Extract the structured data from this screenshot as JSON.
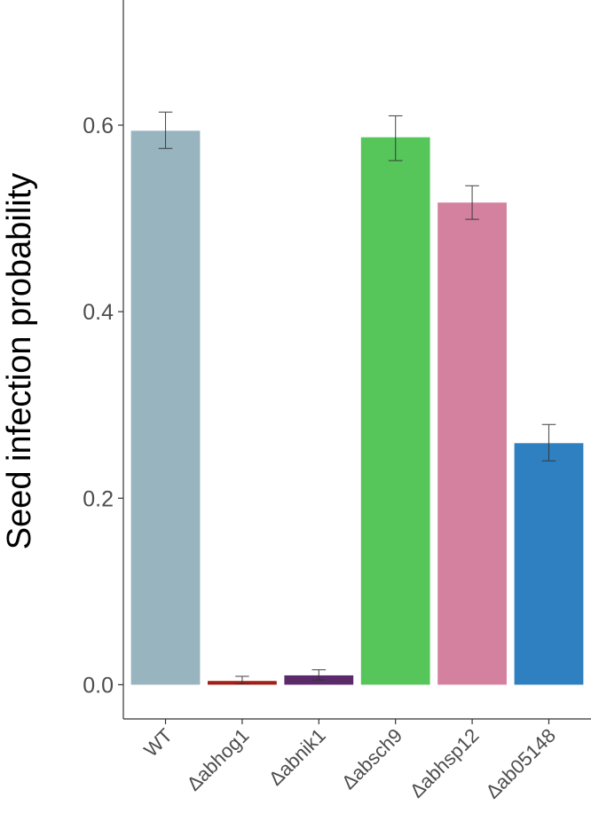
{
  "chart_data": {
    "type": "bar",
    "title": "",
    "xlabel": "",
    "ylabel": "Seed infection probability",
    "ylim": [
      -0.0367,
      0.7342
    ],
    "yticks": [
      0.0,
      0.2,
      0.4,
      0.6
    ],
    "ytick_labels": [
      "0.0",
      "0.2",
      "0.4",
      "0.6"
    ],
    "categories": [
      "WT",
      "Δabhog1",
      "Δabnik1",
      "Δabsch9",
      "Δabhsp12",
      "Δab05148"
    ],
    "values": [
      0.594,
      0.004,
      0.01,
      0.587,
      0.517,
      0.259
    ],
    "error_low": [
      0.575,
      0.001,
      0.005,
      0.562,
      0.499,
      0.24
    ],
    "error_high": [
      0.614,
      0.009,
      0.016,
      0.61,
      0.535,
      0.279
    ],
    "colors": [
      "#98b4bf",
      "#a31f16",
      "#5b2a6b",
      "#56c55a",
      "#d4819f",
      "#2f80c0"
    ],
    "grid": false,
    "legend": "none"
  }
}
